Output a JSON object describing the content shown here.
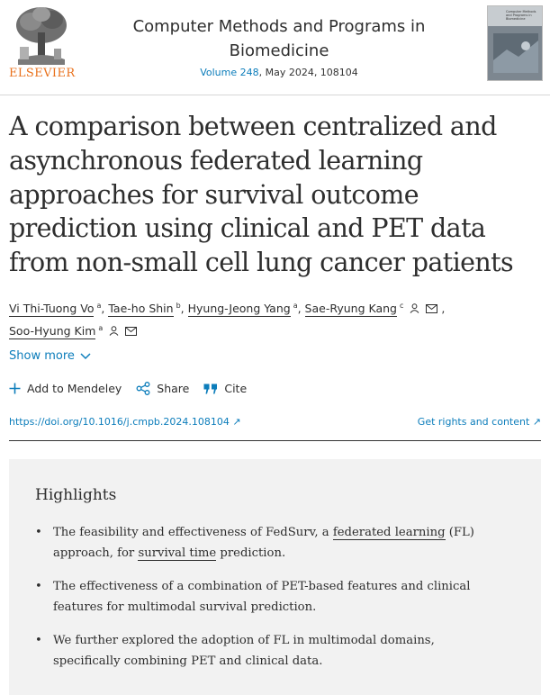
{
  "publisher": {
    "name": "ELSEVIER",
    "brand_color": "#e9711c"
  },
  "journal": {
    "title": "Computer Methods and Programs in Biomedicine",
    "volume": "Volume 248",
    "date_issue": ", May 2024, 108104",
    "link_color": "#0c7dbb"
  },
  "cover": {
    "mini_title": "Computer Methods and Programs in Biomedicine"
  },
  "article": {
    "title": "A comparison between centralized and asynchronous federated learning approaches for survival outcome prediction using clinical and PET data from non-small cell lung cancer patients"
  },
  "authors": [
    {
      "name": "Vi Thi-Tuong Vo",
      "sup": "a"
    },
    {
      "name": "Tae-ho Shin",
      "sup": "b"
    },
    {
      "name": "Hyung-Jeong Yang",
      "sup": "a"
    },
    {
      "name": "Sae-Ryung Kang",
      "sup": "c"
    },
    {
      "name": "Soo-Hyung Kim",
      "sup": "a"
    }
  ],
  "show_more": {
    "label": "Show more"
  },
  "toolbar": {
    "mendeley_label": "Add to Mendeley",
    "share_label": "Share",
    "cite_label": "Cite"
  },
  "links": {
    "doi": "https://doi.org/10.1016/j.cmpb.2024.108104 ↗",
    "rights": "Get rights and content ↗"
  },
  "highlights": {
    "heading": "Highlights",
    "items": [
      {
        "before": "The feasibility and effectiveness of FedSurv, a ",
        "link1": "federated learning",
        "middle": " (FL) approach, for ",
        "link2": "survival time",
        "after": " prediction."
      },
      {
        "text": "The effectiveness of a combination of PET-based features and clinical features for multimodal survival prediction."
      },
      {
        "text": "We further explored the adoption of FL in multimodal domains, specifically combining PET and clinical data."
      }
    ]
  }
}
